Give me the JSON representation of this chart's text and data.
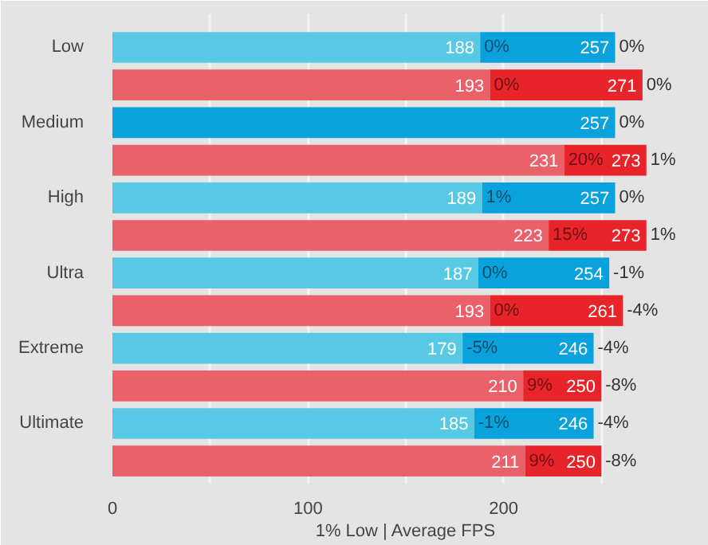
{
  "chart_data": {
    "type": "bar",
    "orientation": "horizontal",
    "stacked": true,
    "xlabel": "1% Low | Average FPS",
    "categories": [
      "Low",
      null,
      "Medium",
      null,
      "High",
      null,
      "Ultra",
      null,
      "Extreme",
      null,
      "Ultimate",
      null
    ],
    "xlim": [
      0,
      300
    ],
    "xticks": [
      0,
      {
        "value": 50,
        "label": null
      },
      100,
      {
        "value": 150,
        "label": null
      },
      200,
      {
        "value": 250,
        "label": null
      }
    ],
    "grid": "x",
    "series": [
      {
        "color": "#58c9e5",
        "values": [
          188,
          null,
          null,
          null,
          189,
          null,
          187,
          null,
          179,
          null,
          185,
          null
        ],
        "value_labels": [
          "188",
          null,
          null,
          null,
          "189",
          null,
          "187",
          null,
          "179",
          null,
          "185",
          null
        ]
      },
      {
        "color": "#0aa2dc",
        "values": [
          69,
          null,
          257,
          null,
          68,
          null,
          67,
          null,
          67,
          null,
          61,
          null
        ]
      },
      {
        "color": "#ea6169",
        "values": [
          null,
          193,
          null,
          231,
          null,
          223,
          null,
          193,
          null,
          210,
          null,
          211
        ],
        "value_labels": [
          null,
          "193",
          null,
          "231",
          null,
          "223",
          null,
          "193",
          null,
          "210",
          null,
          "211"
        ]
      },
      {
        "color": "#e8242b",
        "values": [
          null,
          78,
          null,
          42,
          null,
          50,
          null,
          68,
          null,
          40,
          null,
          39
        ]
      }
    ],
    "totals": [
      "257",
      "271",
      "257",
      "273",
      "257",
      "273",
      "254",
      "261",
      "246",
      "250",
      "246",
      "250"
    ],
    "annotations": [
      "0%",
      "0%",
      "0%",
      "0%",
      "0%",
      "20%",
      "1%",
      "1%",
      "0%",
      "15%",
      "1%",
      "0%",
      "-1%",
      "0%",
      "-4%",
      "-5%",
      "-4%",
      "9%",
      "-8%",
      "-1%",
      "-4%",
      "9%",
      "-8%"
    ]
  }
}
